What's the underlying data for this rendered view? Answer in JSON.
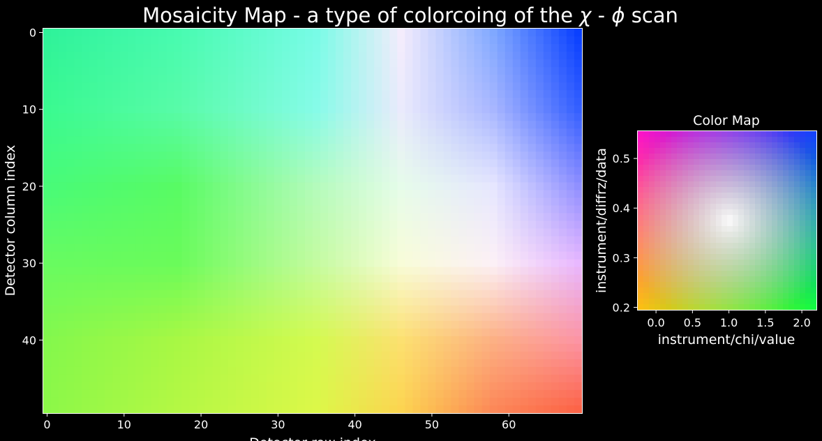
{
  "figure": {
    "title_parts": [
      "Mosaicity Map - a type of colorcoing of the ",
      "χ",
      " - ",
      "ϕ",
      " scan"
    ],
    "background": "#000000",
    "text_color": "#ffffff"
  },
  "chart_data": [
    {
      "type": "heatmap",
      "title": "Mosaicity Map - a type of colorcoing of the χ - ϕ scan",
      "xlabel": "Detector row index",
      "ylabel": "Detector column index",
      "xlim": [
        -0.5,
        69.5
      ],
      "ylim": [
        49.5,
        -0.5
      ],
      "xticks": [
        0,
        10,
        20,
        30,
        40,
        50,
        60
      ],
      "yticks": [
        0,
        10,
        20,
        30,
        40
      ],
      "n_cols": 70,
      "n_rows": 50,
      "color_control_points": [
        {
          "x": 0,
          "y": 0,
          "color": "#2ff29a"
        },
        {
          "x": 17,
          "y": 0,
          "color": "#48fbb0"
        },
        {
          "x": 35,
          "y": 0,
          "color": "#78fbe6"
        },
        {
          "x": 46,
          "y": 0,
          "color": "#f4ecfc"
        },
        {
          "x": 58,
          "y": 0,
          "color": "#80a8ff"
        },
        {
          "x": 69,
          "y": 0,
          "color": "#0a40ff"
        },
        {
          "x": 0,
          "y": 10,
          "color": "#3afa90"
        },
        {
          "x": 17,
          "y": 10,
          "color": "#58fba8"
        },
        {
          "x": 35,
          "y": 10,
          "color": "#86fbe8"
        },
        {
          "x": 46,
          "y": 10,
          "color": "#eaeafc"
        },
        {
          "x": 58,
          "y": 10,
          "color": "#a8b6ff"
        },
        {
          "x": 69,
          "y": 10,
          "color": "#3560ff"
        },
        {
          "x": 0,
          "y": 20,
          "color": "#48fb78"
        },
        {
          "x": 17,
          "y": 20,
          "color": "#58fb64"
        },
        {
          "x": 35,
          "y": 20,
          "color": "#b4fbbc"
        },
        {
          "x": 46,
          "y": 20,
          "color": "#e6fcea"
        },
        {
          "x": 58,
          "y": 20,
          "color": "#e6e6ff"
        },
        {
          "x": 69,
          "y": 20,
          "color": "#9090ff"
        },
        {
          "x": 0,
          "y": 30,
          "color": "#68fb60"
        },
        {
          "x": 17,
          "y": 30,
          "color": "#6afb5a"
        },
        {
          "x": 35,
          "y": 30,
          "color": "#c4fba0"
        },
        {
          "x": 46,
          "y": 30,
          "color": "#f8fcd8"
        },
        {
          "x": 58,
          "y": 30,
          "color": "#fcf0f6"
        },
        {
          "x": 69,
          "y": 30,
          "color": "#e8b8ff"
        },
        {
          "x": 0,
          "y": 40,
          "color": "#84f84c"
        },
        {
          "x": 17,
          "y": 40,
          "color": "#a8f844"
        },
        {
          "x": 35,
          "y": 40,
          "color": "#d4fa50"
        },
        {
          "x": 46,
          "y": 40,
          "color": "#fce070"
        },
        {
          "x": 58,
          "y": 40,
          "color": "#fcb084"
        },
        {
          "x": 69,
          "y": 40,
          "color": "#fc94a4"
        },
        {
          "x": 0,
          "y": 49,
          "color": "#8cf848"
        },
        {
          "x": 17,
          "y": 49,
          "color": "#b4f844"
        },
        {
          "x": 35,
          "y": 49,
          "color": "#dcf848"
        },
        {
          "x": 46,
          "y": 49,
          "color": "#fcd450"
        },
        {
          "x": 58,
          "y": 49,
          "color": "#fc8858"
        },
        {
          "x": 69,
          "y": 49,
          "color": "#fc6448"
        }
      ]
    },
    {
      "type": "heatmap",
      "title": "Color Map",
      "xlabel": "instrument/chi/value",
      "ylabel": "instrument/diffrz/data",
      "xlim": [
        -0.25,
        2.2
      ],
      "ylim": [
        0.195,
        0.555
      ],
      "xticks": [
        "0.0",
        "0.5",
        "1.0",
        "1.5",
        "2.0"
      ],
      "yticks": [
        "0.2",
        "0.3",
        "0.4",
        "0.5"
      ],
      "center": {
        "x": 1.0,
        "y": 0.375
      },
      "corner_colors": {
        "top_left": "#ff10c8",
        "top_right": "#1040ff",
        "bottom_left": "#ffc010",
        "bottom_right": "#10ff40"
      },
      "center_color": "#ffffff"
    }
  ]
}
